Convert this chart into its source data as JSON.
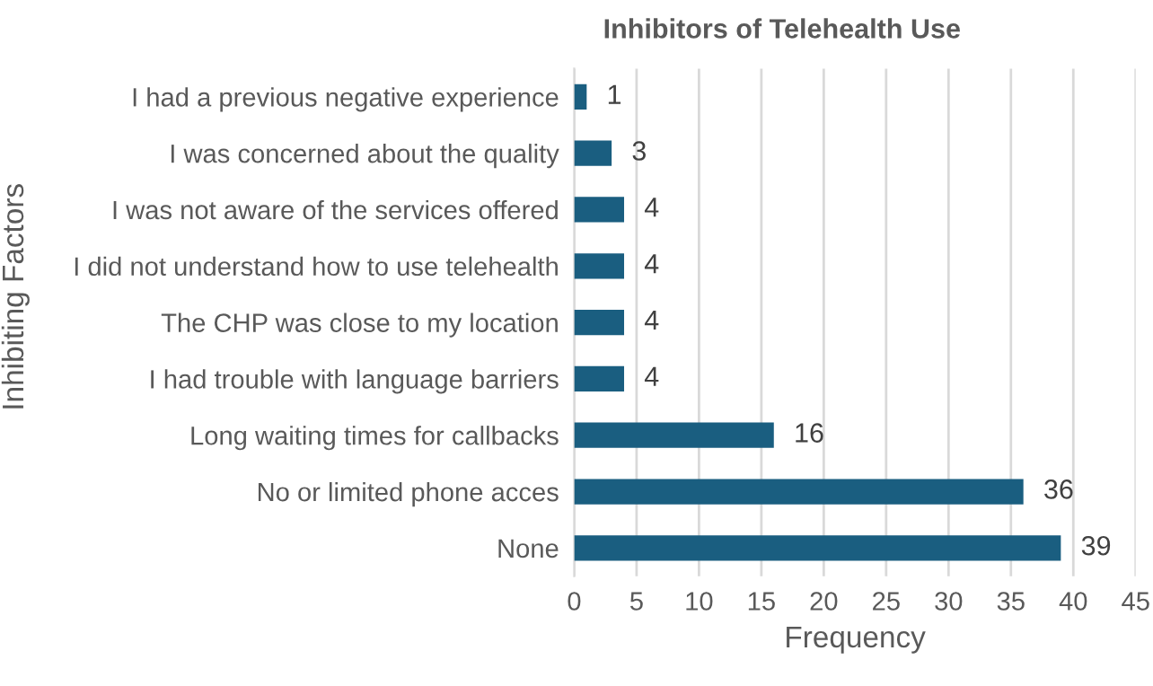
{
  "chart_data": {
    "type": "bar",
    "orientation": "horizontal",
    "title": "Inhibitors of Telehealth Use",
    "xlabel": "Frequency",
    "ylabel": "Inhibiting Factors",
    "categories": [
      "I had a previous negative experience",
      "I was concerned about the quality",
      "I was not aware of the services offered",
      "I did not understand how to use telehealth",
      "The CHP was close to my location",
      "I had trouble with language barriers",
      "Long waiting times for callbacks",
      "No or limited phone acces",
      "None"
    ],
    "values": [
      1,
      3,
      4,
      4,
      4,
      4,
      16,
      36,
      39
    ],
    "color": "#1a5e80",
    "xlim": [
      0,
      45
    ],
    "xticks": [
      0,
      5,
      10,
      15,
      20,
      25,
      30,
      35,
      40,
      45
    ],
    "grid": "x",
    "data_labels": true
  }
}
